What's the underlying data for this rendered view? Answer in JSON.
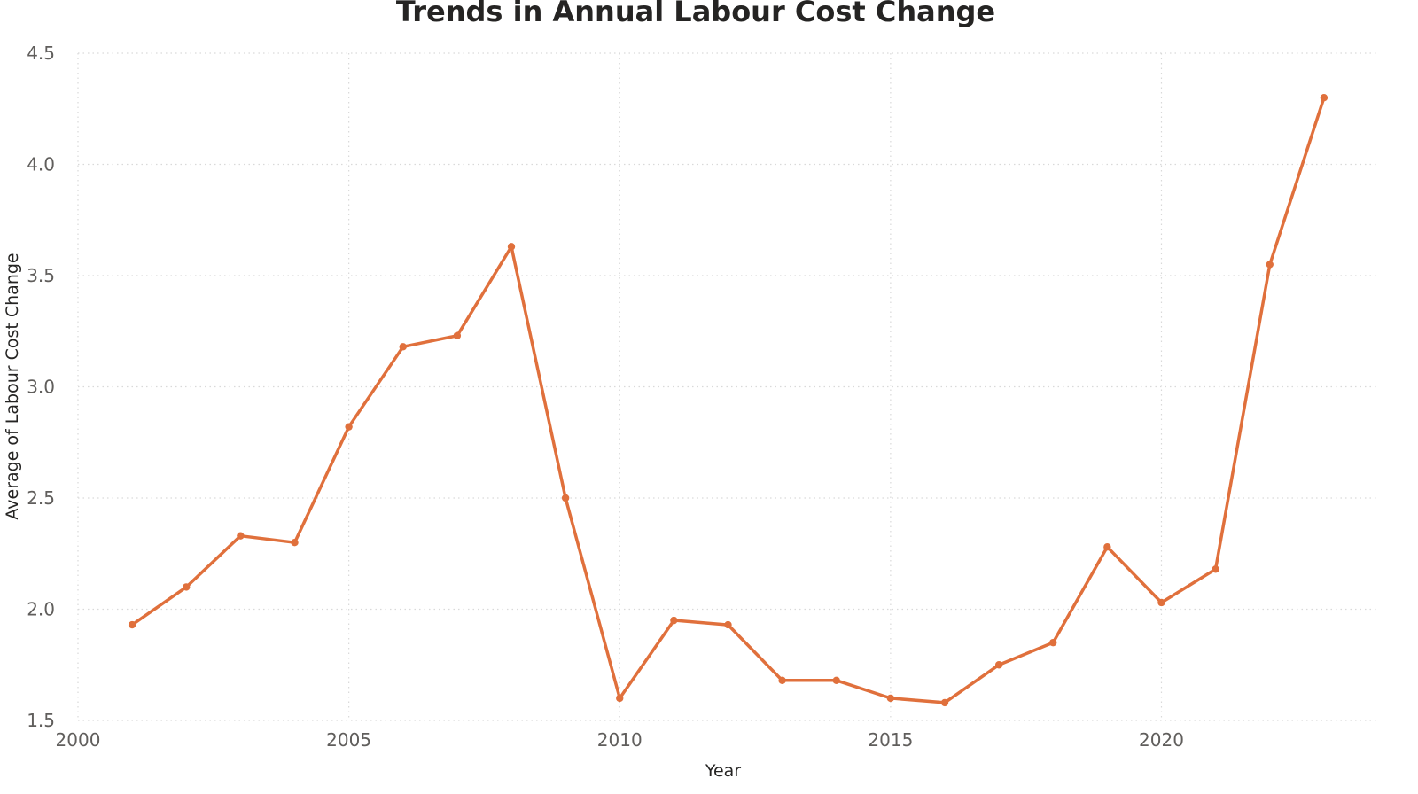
{
  "chart_data": {
    "type": "line",
    "title": "Trends in Annual Labour Cost Change",
    "xlabel": "Year",
    "ylabel": "Average of Labour Cost Change",
    "xlim": [
      2000,
      2024
    ],
    "ylim": [
      1.5,
      4.5
    ],
    "xticks": [
      2000,
      2005,
      2010,
      2015,
      2020
    ],
    "yticks": [
      1.5,
      2.0,
      2.5,
      3.0,
      3.5,
      4.0,
      4.5
    ],
    "ytick_labels": [
      "1.5",
      "2.0",
      "2.5",
      "3.0",
      "3.5",
      "4.0",
      "4.5"
    ],
    "grid": true,
    "legend": "none",
    "line_color": "#e0703c",
    "x": [
      2001,
      2002,
      2003,
      2004,
      2005,
      2006,
      2007,
      2008,
      2009,
      2010,
      2011,
      2012,
      2013,
      2014,
      2015,
      2016,
      2017,
      2018,
      2019,
      2020,
      2021,
      2022,
      2023
    ],
    "y": [
      1.93,
      2.1,
      2.33,
      2.3,
      2.82,
      3.18,
      3.23,
      3.63,
      2.5,
      1.6,
      1.95,
      1.93,
      1.68,
      1.68,
      1.6,
      1.58,
      1.75,
      1.85,
      2.28,
      2.03,
      2.18,
      3.55,
      4.3
    ]
  }
}
